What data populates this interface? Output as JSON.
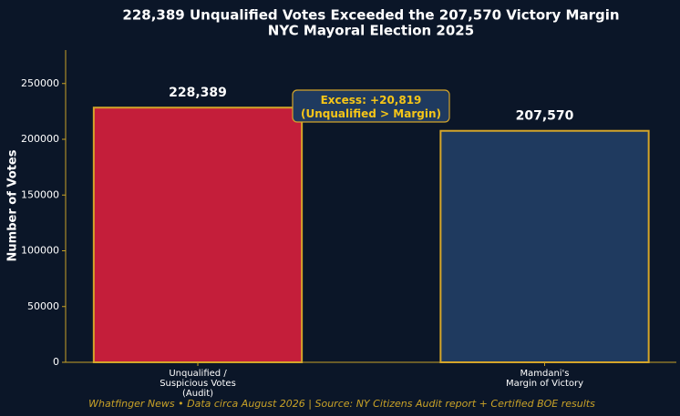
{
  "chart_data": {
    "type": "bar",
    "title": "228,389 Unqualified Votes Exceeded the 207,570 Victory Margin",
    "subtitle": "NYC Mayoral Election 2025",
    "y_label": "Number of Votes",
    "categories": [
      "Unqualified /\nSuspicious Votes\n(Audit)",
      "Mamdani's\nMargin of Victory"
    ],
    "values": [
      228389,
      207570
    ],
    "value_labels": [
      "228,389",
      "207,570"
    ],
    "colors": [
      "#c41e3a",
      "#1f3a5f"
    ],
    "edge_color": "#d4a52a",
    "ylim": [
      0,
      280000
    ],
    "yticks": [
      0,
      50000,
      100000,
      150000,
      200000,
      250000
    ],
    "annotation": "Excess: +20,819\n(Unqualified > Margin)",
    "footer": "Whatfinger News • Data circa August 2026 | Source: NY Citizens Audit report + Certified BOE results"
  }
}
